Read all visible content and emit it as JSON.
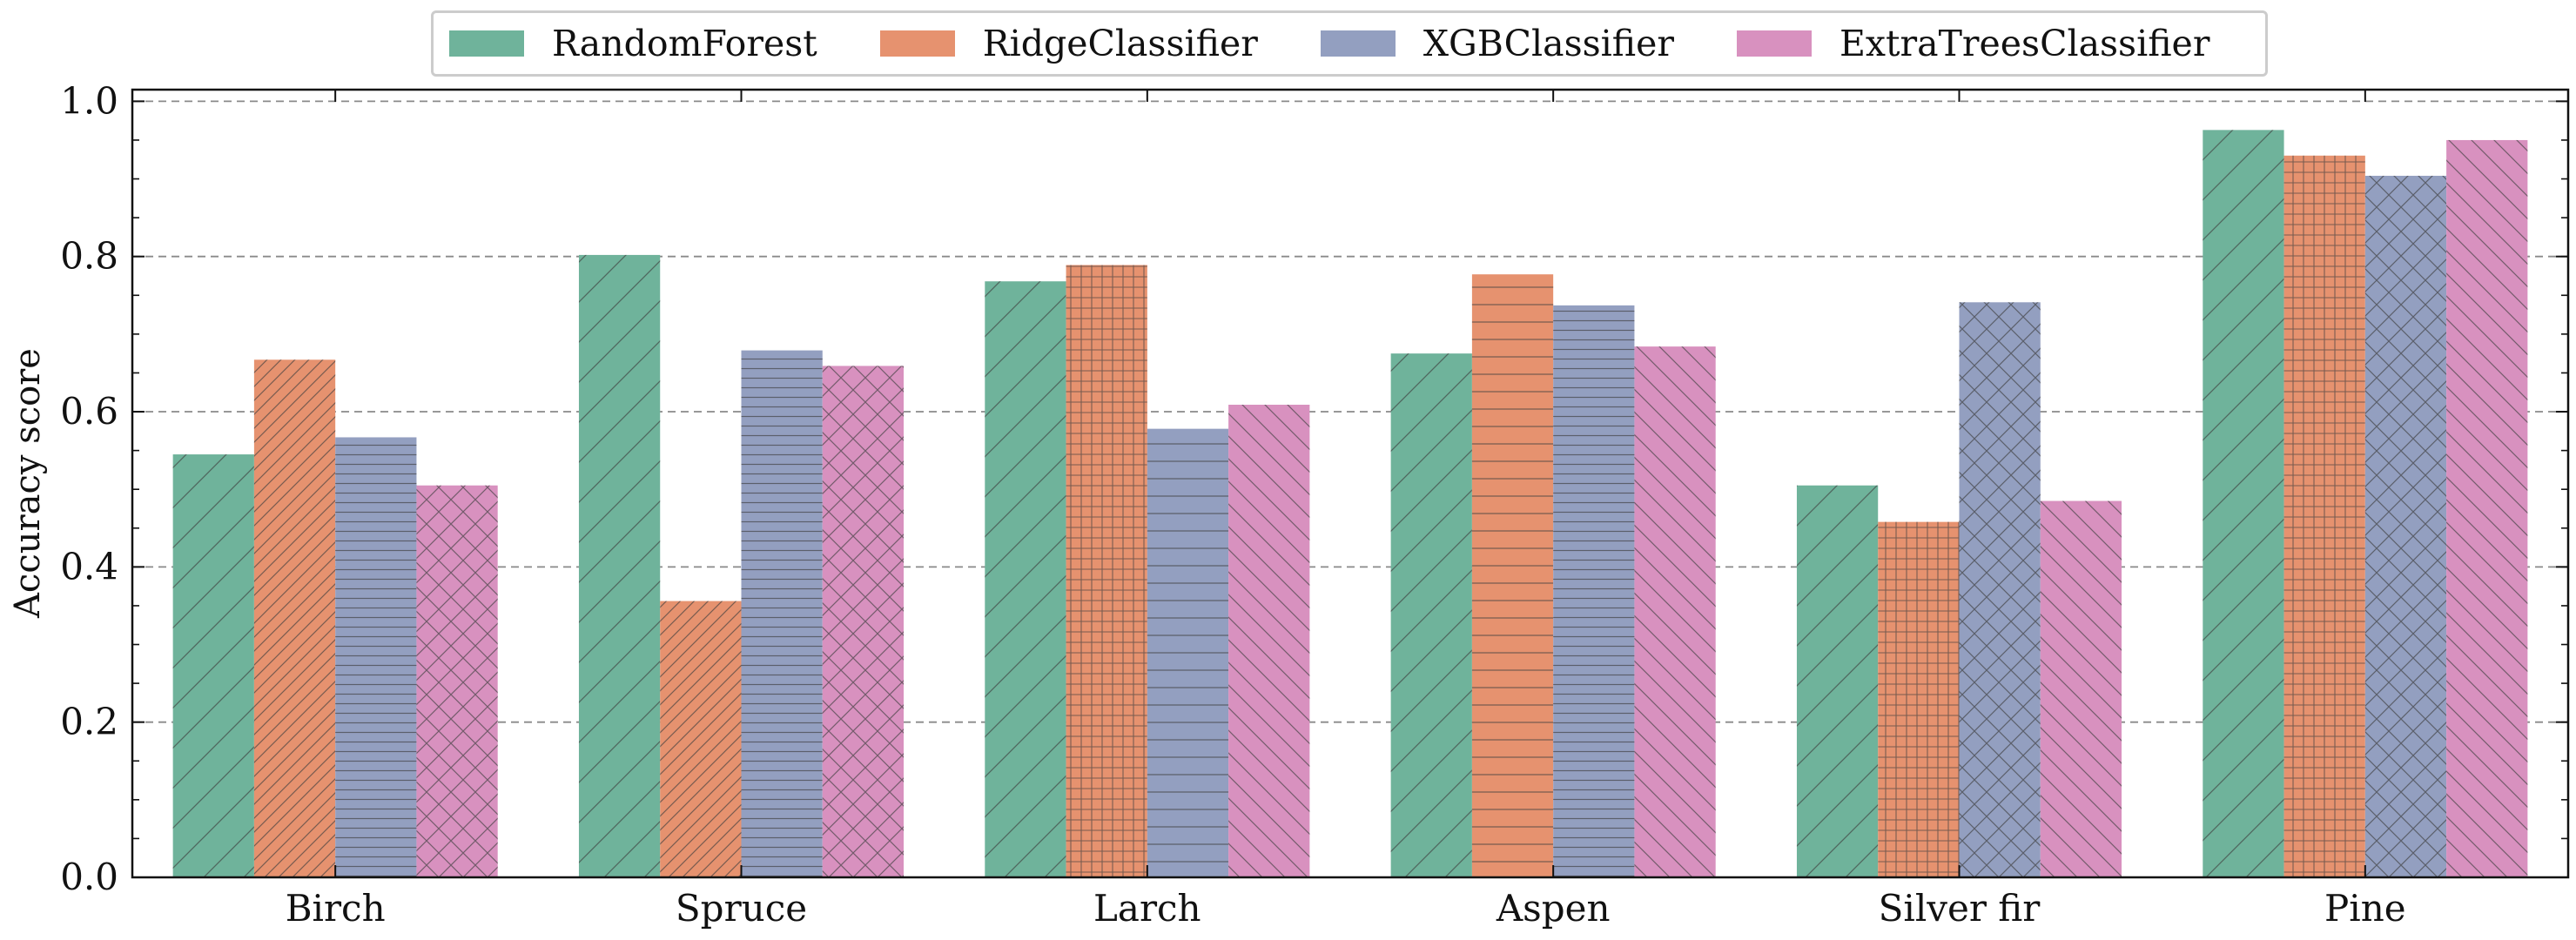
{
  "chart_data": {
    "type": "bar",
    "title": "",
    "xlabel": "",
    "ylabel": "Accuracy score",
    "ylim": [
      0,
      1.0
    ],
    "yticks": [
      "0.0",
      "0.2",
      "0.4",
      "0.6",
      "0.8",
      "1.0"
    ],
    "grid": "horizontal dashed",
    "legend_position": "top-center",
    "categories": [
      "Birch",
      "Spruce",
      "Larch",
      "Aspen",
      "Silver fir",
      "Pine"
    ],
    "series": [
      {
        "name": "RandomForest",
        "color": "#6fb39b",
        "values": [
          0.545,
          0.802,
          0.768,
          0.675,
          0.505,
          0.963
        ]
      },
      {
        "name": "RidgeClassifier",
        "color": "#e6926f",
        "values": [
          0.667,
          0.356,
          0.789,
          0.777,
          0.458,
          0.93
        ]
      },
      {
        "name": "XGBClassifier",
        "color": "#939fc0",
        "values": [
          0.567,
          0.679,
          0.578,
          0.737,
          0.741,
          0.904
        ]
      },
      {
        "name": "ExtraTreesClassifier",
        "color": "#d891bf",
        "values": [
          0.505,
          0.659,
          0.609,
          0.684,
          0.485,
          0.95
        ]
      }
    ],
    "hatch_patterns": [
      [
        "diag-fwd",
        "diag-fwd-dense",
        "horiz-dense",
        "crosshatch"
      ],
      [
        "diag-fwd",
        "diag-fwd-dense",
        "horiz-dense",
        "crosshatch"
      ],
      [
        "diag-fwd",
        "grid",
        "horiz",
        "diag-back"
      ],
      [
        "diag-fwd",
        "horiz",
        "horiz-dense",
        "diag-back"
      ],
      [
        "diag-fwd",
        "grid",
        "crosshatch",
        "diag-back"
      ],
      [
        "diag-fwd",
        "grid",
        "crosshatch",
        "diag-back"
      ]
    ]
  }
}
